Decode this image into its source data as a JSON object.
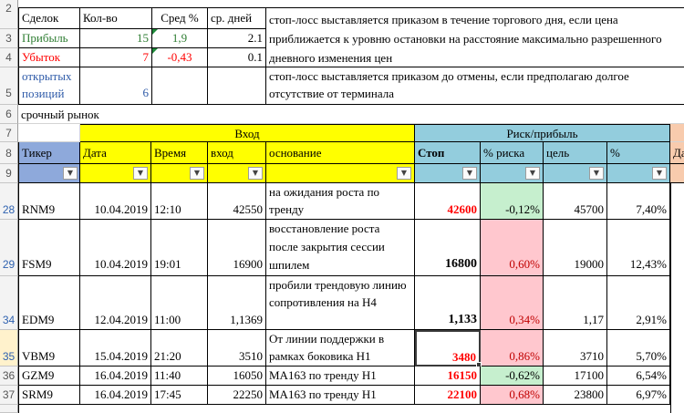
{
  "row_headers": [
    "2",
    "3",
    "4",
    "5",
    "6",
    "7",
    "8",
    "9",
    "28",
    "29",
    "34",
    "35",
    "36",
    "37"
  ],
  "summary": {
    "headers": [
      "Сделок",
      "Кол-во",
      "Сред %",
      "ср. дней"
    ],
    "rows": [
      {
        "label": "Прибыль",
        "count": "15",
        "avg": "1,9",
        "days": "2.1"
      },
      {
        "label": "Убыток",
        "count": "7",
        "avg": "-0,43",
        "days": "0.1"
      },
      {
        "label": "открытых позиций",
        "count": "6",
        "avg": "",
        "days": ""
      }
    ],
    "notes": [
      "стоп-лосс выставляется приказом в течение торгового дня, если цена приближается к уровню остановки на расстояние максимально разрешенного дневного изменения цен",
      "стоп-лосс выставляется приказом до отмены, если предполагаю долгое отсутствие от терминала"
    ],
    "colors": {
      "profit": "#2e7d32",
      "loss": "#ff0000",
      "open": "#2e5aa8"
    }
  },
  "market_label": "срочный рынок",
  "groups": {
    "entry": "Вход",
    "risk": "Риск/прибыль"
  },
  "columns": [
    "Тикер",
    "Дата",
    "Время",
    "вход",
    "основание",
    "Стоп",
    "% риска",
    "цель",
    "%",
    "Да"
  ],
  "filter_icon": "dropdown-arrow-icon",
  "trades": [
    {
      "ticker": "RNM9",
      "date": "10.04.2019",
      "time": "12:10",
      "entry": "42550",
      "reason": "на ожидания роста по тренду",
      "stop": "42600",
      "stop_color": "#ff0000",
      "risk": "-0,12%",
      "risk_bg": "#c6efce",
      "target": "45700",
      "pct": "7,40%"
    },
    {
      "ticker": "FSM9",
      "date": "10.04.2019",
      "time": "19:01",
      "entry": "16900",
      "reason": "восстановление роста после закрытия сессии шпилем",
      "stop": "16800",
      "stop_color": "#000000",
      "risk": "0,60%",
      "risk_bg": "#ffc7ce",
      "target": "19000",
      "pct": "12,43%"
    },
    {
      "ticker": "EDM9",
      "date": "12.04.2019",
      "time": "11:00",
      "entry": "1,1369",
      "reason": "пробили трендовую линию сопротивления на Н4",
      "stop": "1,133",
      "stop_color": "#000000",
      "risk": "0,34%",
      "risk_bg": "#ffc7ce",
      "target": "1,17",
      "pct": "2,91%"
    },
    {
      "ticker": "VBM9",
      "date": "15.04.2019",
      "time": "21:20",
      "entry": "3510",
      "reason": "От линии поддержки в рамках боковика Н1",
      "stop": "3480",
      "stop_color": "#ff0000",
      "risk": "0,86%",
      "risk_bg": "#ffc7ce",
      "target": "3710",
      "pct": "5,70%"
    },
    {
      "ticker": "GZM9",
      "date": "16.04.2019",
      "time": "11:40",
      "entry": "16050",
      "reason": "МА163 по тренду Н1",
      "stop": "16150",
      "stop_color": "#ff0000",
      "risk": "-0,62%",
      "risk_bg": "#c6efce",
      "target": "17100",
      "pct": "6,54%"
    },
    {
      "ticker": "SRM9",
      "date": "16.04.2019",
      "time": "17:45",
      "entry": "22250",
      "reason": "МА163 по тренду Н1",
      "stop": "22100",
      "stop_color": "#ff0000",
      "risk": "0,68%",
      "risk_bg": "#ffc7ce",
      "target": "23800",
      "pct": "6,97%"
    }
  ]
}
